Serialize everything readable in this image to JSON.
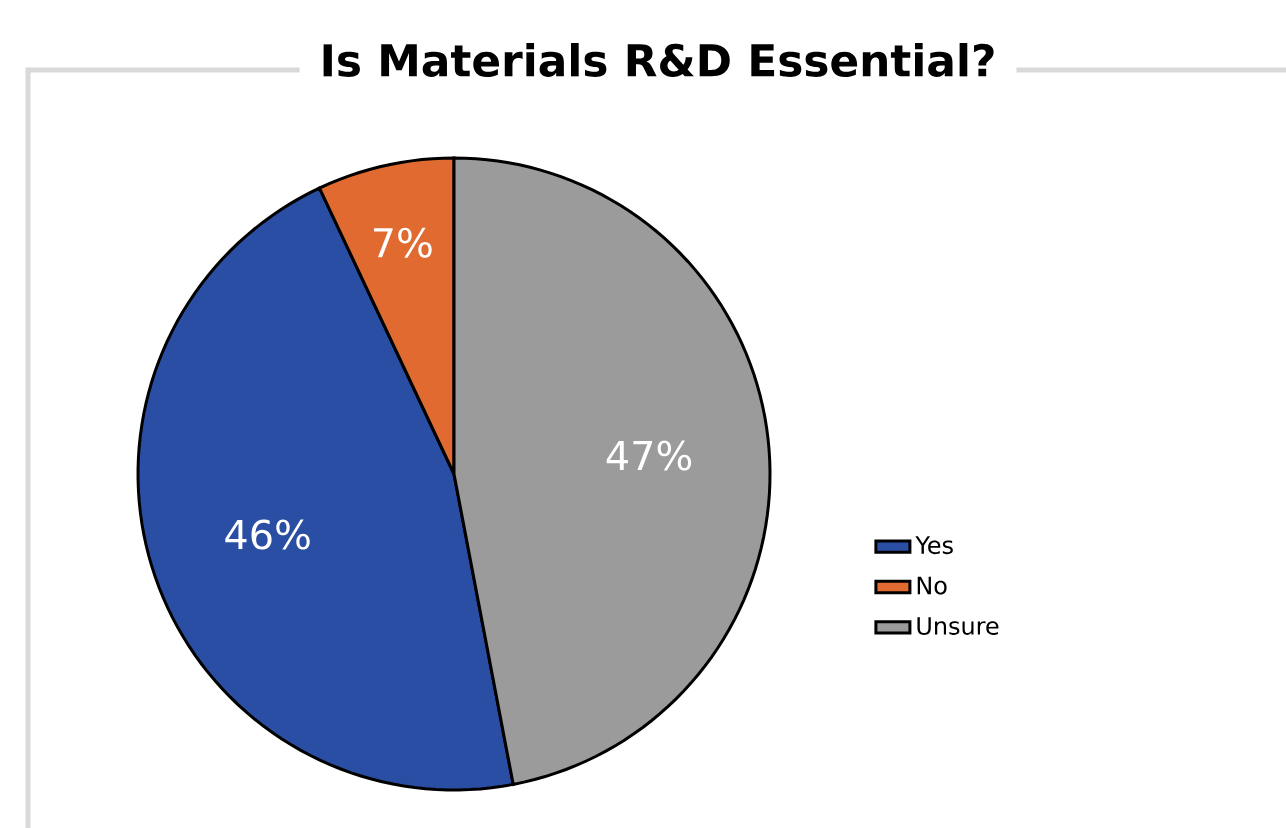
{
  "chart_data": {
    "type": "pie",
    "title": "Is Materials R&D Essential?",
    "categories": [
      "Yes",
      "No",
      "Unsure"
    ],
    "values": [
      46,
      7,
      47
    ],
    "value_labels": [
      "46%",
      "7%",
      "47%"
    ],
    "colors": [
      "#2a4ea3",
      "#e06a30",
      "#9b9b9b"
    ],
    "legend": "right"
  }
}
